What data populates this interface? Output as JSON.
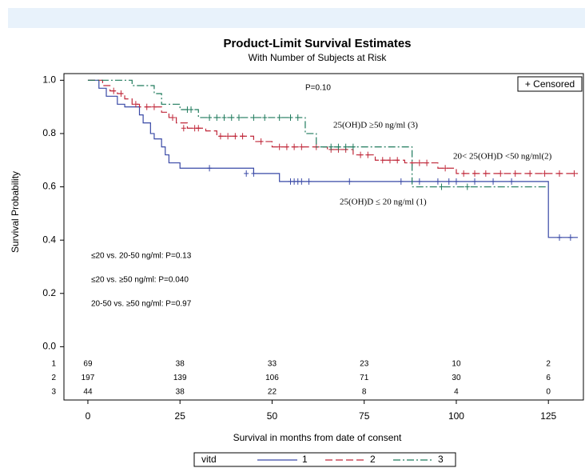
{
  "chart_data": {
    "type": "step",
    "title": "Product-Limit Survival Estimates",
    "subtitle": "With Number of Subjects at Risk",
    "x_label": "Survival in months from date of consent",
    "y_label": "Survival Probability",
    "xlim": [
      -6.5,
      134.5
    ],
    "ylim": [
      -0.2,
      1.025
    ],
    "xticks": [
      0,
      25,
      50,
      75,
      100,
      125
    ],
    "yticks": [
      {
        "value": 0,
        "label": "0.0"
      },
      0.2,
      0.4,
      0.6,
      0.8,
      {
        "value": 1,
        "label": "1.0"
      }
    ],
    "censored_legend": "+ Censored",
    "legend_title": "vitd",
    "annotations": [
      "P=0.10",
      "25(OH)D ≥50 ng/ml (3)",
      "20< 25(OH)D <50 ng/ml(2)",
      "25(OH)D ≤ 20 ng/ml (1)",
      "≤20 vs. 20-50 ng/ml: P=0.13",
      "≤20 vs. ≥50 ng/ml: P=0.040",
      "20-50 vs. ≥50 ng/ml: P=0.97"
    ],
    "series": [
      {
        "name": "1",
        "color": "#3949a6",
        "dash": "none",
        "x": [
          0,
          3,
          5,
          8,
          10,
          14,
          15,
          17,
          18,
          20,
          21,
          22,
          25,
          45,
          52,
          125,
          133
        ],
        "values": [
          1.0,
          0.97,
          0.94,
          0.91,
          0.9,
          0.87,
          0.84,
          0.8,
          0.78,
          0.75,
          0.72,
          0.69,
          0.67,
          0.65,
          0.62,
          0.41,
          0.41
        ],
        "censor_x": [
          33,
          43,
          45,
          55,
          56,
          57,
          58,
          60,
          71,
          85,
          90,
          95,
          98,
          100,
          105,
          110,
          115,
          128,
          131
        ],
        "censor_values": [
          0.67,
          0.65,
          0.65,
          0.62,
          0.62,
          0.62,
          0.62,
          0.62,
          0.62,
          0.62,
          0.62,
          0.62,
          0.62,
          0.62,
          0.62,
          0.62,
          0.62,
          0.41,
          0.41
        ]
      },
      {
        "name": "2",
        "color": "#c0283a",
        "dash": "9,4",
        "x": [
          0,
          4,
          6,
          8,
          10,
          12,
          14,
          20,
          22,
          24,
          27,
          32,
          35,
          45,
          50,
          65,
          72,
          78,
          86,
          95,
          100,
          133
        ],
        "values": [
          1.0,
          0.98,
          0.96,
          0.95,
          0.93,
          0.91,
          0.9,
          0.88,
          0.86,
          0.84,
          0.82,
          0.81,
          0.79,
          0.77,
          0.75,
          0.74,
          0.72,
          0.7,
          0.69,
          0.67,
          0.65,
          0.65
        ],
        "censor_x": [
          7,
          9,
          13,
          16,
          18,
          23,
          26,
          29,
          30,
          36,
          38,
          40,
          42,
          47,
          52,
          54,
          56,
          58,
          62,
          66,
          68,
          70,
          74,
          76,
          80,
          82,
          84,
          88,
          90,
          92,
          97,
          102,
          105,
          108,
          112,
          116,
          120,
          124,
          128,
          132
        ],
        "censor_values": [
          0.96,
          0.95,
          0.91,
          0.9,
          0.9,
          0.86,
          0.82,
          0.82,
          0.82,
          0.79,
          0.79,
          0.79,
          0.79,
          0.77,
          0.75,
          0.75,
          0.75,
          0.75,
          0.75,
          0.74,
          0.74,
          0.74,
          0.72,
          0.72,
          0.7,
          0.7,
          0.7,
          0.69,
          0.69,
          0.69,
          0.67,
          0.65,
          0.65,
          0.65,
          0.65,
          0.65,
          0.65,
          0.65,
          0.65,
          0.65
        ]
      },
      {
        "name": "3",
        "color": "#1f7a5c",
        "dash": "9,3,2,3",
        "x": [
          0,
          12,
          18,
          20,
          25,
          30,
          59,
          62,
          88,
          125
        ],
        "values": [
          1.0,
          0.98,
          0.95,
          0.91,
          0.89,
          0.86,
          0.8,
          0.75,
          0.6,
          0.6
        ],
        "censor_x": [
          27,
          28,
          33,
          35,
          37,
          39,
          41,
          45,
          48,
          52,
          55,
          57,
          66,
          68,
          70,
          72,
          96,
          103
        ],
        "censor_values": [
          0.89,
          0.89,
          0.86,
          0.86,
          0.86,
          0.86,
          0.86,
          0.86,
          0.86,
          0.86,
          0.86,
          0.86,
          0.75,
          0.75,
          0.75,
          0.75,
          0.6,
          0.6
        ]
      }
    ],
    "risk_table": [
      {
        "label": "1",
        "counts": [
          69,
          38,
          33,
          23,
          10,
          2
        ]
      },
      {
        "label": "2",
        "counts": [
          197,
          139,
          106,
          71,
          30,
          6
        ]
      },
      {
        "label": "3",
        "counts": [
          44,
          38,
          22,
          8,
          4,
          0
        ]
      }
    ]
  }
}
